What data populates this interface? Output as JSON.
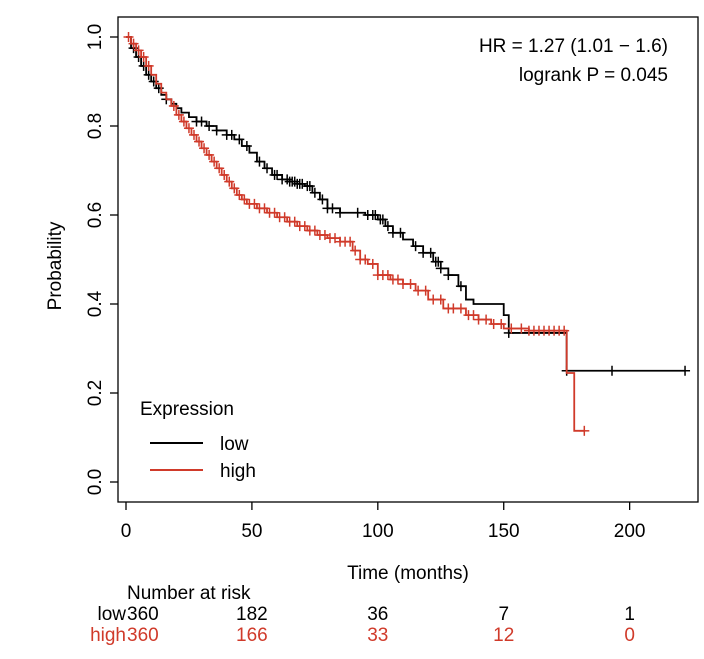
{
  "chart_data": {
    "type": "line",
    "subtype": "kaplan-meier",
    "xlabel": "Time (months)",
    "ylabel": "Probability",
    "xlim": [
      0,
      225
    ],
    "ylim": [
      0,
      1
    ],
    "xticks": [
      0,
      50,
      100,
      150,
      200
    ],
    "xtick_labels": [
      "0",
      "50",
      "100",
      "150",
      "200"
    ],
    "yticks": [
      0.0,
      0.2,
      0.4,
      0.6,
      0.8,
      1.0
    ],
    "ytick_labels": [
      "0.0",
      "0.2",
      "0.4",
      "0.6",
      "0.8",
      "1.0"
    ],
    "annotations": [
      "HR = 1.27 (1.01 − 1.6)",
      "logrank P = 0.045"
    ],
    "legend": {
      "title": "Expression",
      "position": "bottom-left",
      "entries": [
        {
          "label": "low",
          "color": "#000000"
        },
        {
          "label": "high",
          "color": "#d03a2a"
        }
      ]
    },
    "series": [
      {
        "name": "low",
        "color": "#000000",
        "steps": [
          [
            0,
            1.0
          ],
          [
            2,
            0.975
          ],
          [
            4,
            0.955
          ],
          [
            6,
            0.935
          ],
          [
            8,
            0.915
          ],
          [
            10,
            0.9
          ],
          [
            12,
            0.885
          ],
          [
            14,
            0.87
          ],
          [
            16,
            0.86
          ],
          [
            18,
            0.85
          ],
          [
            20,
            0.84
          ],
          [
            22,
            0.83
          ],
          [
            25,
            0.82
          ],
          [
            28,
            0.81
          ],
          [
            32,
            0.8
          ],
          [
            36,
            0.79
          ],
          [
            40,
            0.78
          ],
          [
            43,
            0.77
          ],
          [
            46,
            0.755
          ],
          [
            49,
            0.74
          ],
          [
            52,
            0.72
          ],
          [
            55,
            0.705
          ],
          [
            58,
            0.69
          ],
          [
            62,
            0.68
          ],
          [
            65,
            0.675
          ],
          [
            68,
            0.67
          ],
          [
            71,
            0.665
          ],
          [
            74,
            0.65
          ],
          [
            77,
            0.635
          ],
          [
            80,
            0.615
          ],
          [
            85,
            0.605
          ],
          [
            95,
            0.6
          ],
          [
            100,
            0.59
          ],
          [
            103,
            0.575
          ],
          [
            106,
            0.56
          ],
          [
            110,
            0.545
          ],
          [
            114,
            0.53
          ],
          [
            118,
            0.515
          ],
          [
            122,
            0.495
          ],
          [
            125,
            0.48
          ],
          [
            128,
            0.465
          ],
          [
            132,
            0.44
          ],
          [
            135,
            0.41
          ],
          [
            138,
            0.4
          ],
          [
            150,
            0.375
          ],
          [
            152,
            0.335
          ],
          [
            175,
            0.25
          ],
          [
            222,
            0.25
          ]
        ],
        "censor_times": [
          3,
          5,
          7,
          9,
          11,
          13,
          16,
          28,
          30,
          33,
          36,
          40,
          42,
          45,
          48,
          53,
          56,
          59,
          60,
          62,
          64,
          65,
          66,
          67,
          68,
          69,
          70,
          72,
          73,
          75,
          78,
          80,
          82,
          85,
          92,
          96,
          98,
          99,
          101,
          102,
          104,
          106,
          109,
          115,
          118,
          121,
          123,
          124,
          125,
          128,
          133,
          152,
          175,
          193,
          222
        ]
      },
      {
        "name": "high",
        "color": "#d03a2a",
        "steps": [
          [
            0,
            1.0
          ],
          [
            2,
            0.985
          ],
          [
            4,
            0.97
          ],
          [
            6,
            0.955
          ],
          [
            8,
            0.935
          ],
          [
            10,
            0.915
          ],
          [
            12,
            0.895
          ],
          [
            14,
            0.875
          ],
          [
            16,
            0.86
          ],
          [
            18,
            0.845
          ],
          [
            20,
            0.825
          ],
          [
            22,
            0.81
          ],
          [
            24,
            0.795
          ],
          [
            26,
            0.78
          ],
          [
            28,
            0.765
          ],
          [
            30,
            0.75
          ],
          [
            32,
            0.735
          ],
          [
            34,
            0.72
          ],
          [
            36,
            0.705
          ],
          [
            38,
            0.69
          ],
          [
            40,
            0.675
          ],
          [
            42,
            0.66
          ],
          [
            44,
            0.645
          ],
          [
            46,
            0.635
          ],
          [
            48,
            0.625
          ],
          [
            52,
            0.615
          ],
          [
            56,
            0.605
          ],
          [
            60,
            0.595
          ],
          [
            64,
            0.585
          ],
          [
            68,
            0.575
          ],
          [
            72,
            0.565
          ],
          [
            76,
            0.555
          ],
          [
            80,
            0.548
          ],
          [
            85,
            0.54
          ],
          [
            90,
            0.52
          ],
          [
            93,
            0.5
          ],
          [
            96,
            0.49
          ],
          [
            100,
            0.465
          ],
          [
            105,
            0.455
          ],
          [
            110,
            0.445
          ],
          [
            115,
            0.43
          ],
          [
            120,
            0.41
          ],
          [
            126,
            0.39
          ],
          [
            130,
            0.39
          ],
          [
            135,
            0.375
          ],
          [
            140,
            0.365
          ],
          [
            145,
            0.355
          ],
          [
            150,
            0.345
          ],
          [
            160,
            0.34
          ],
          [
            175,
            0.245
          ],
          [
            178,
            0.115
          ],
          [
            182,
            0.115
          ]
        ],
        "censor_times": [
          1,
          3,
          5,
          7,
          9,
          19,
          21,
          23,
          25,
          27,
          29,
          31,
          33,
          35,
          37,
          39,
          41,
          43,
          45,
          47,
          49,
          51,
          53,
          55,
          57,
          59,
          61,
          63,
          65,
          67,
          69,
          71,
          73,
          75,
          77,
          79,
          81,
          83,
          85,
          87,
          89,
          91,
          93,
          95,
          98,
          100,
          102,
          104,
          106,
          108,
          110,
          113,
          116,
          119,
          122,
          125,
          128,
          130,
          133,
          136,
          138,
          140,
          143,
          146,
          149,
          153,
          157,
          160,
          162,
          164,
          166,
          168,
          170,
          172,
          174,
          182
        ]
      }
    ],
    "risk_table": {
      "title": "Number at risk",
      "times": [
        0,
        50,
        100,
        150,
        200
      ],
      "rows": [
        {
          "label": "low",
          "color": "#000000",
          "values": [
            "360",
            "182",
            "36",
            "7",
            "1"
          ]
        },
        {
          "label": "high",
          "color": "#d03a2a",
          "values": [
            "360",
            "166",
            "33",
            "12",
            "0"
          ]
        }
      ]
    }
  }
}
